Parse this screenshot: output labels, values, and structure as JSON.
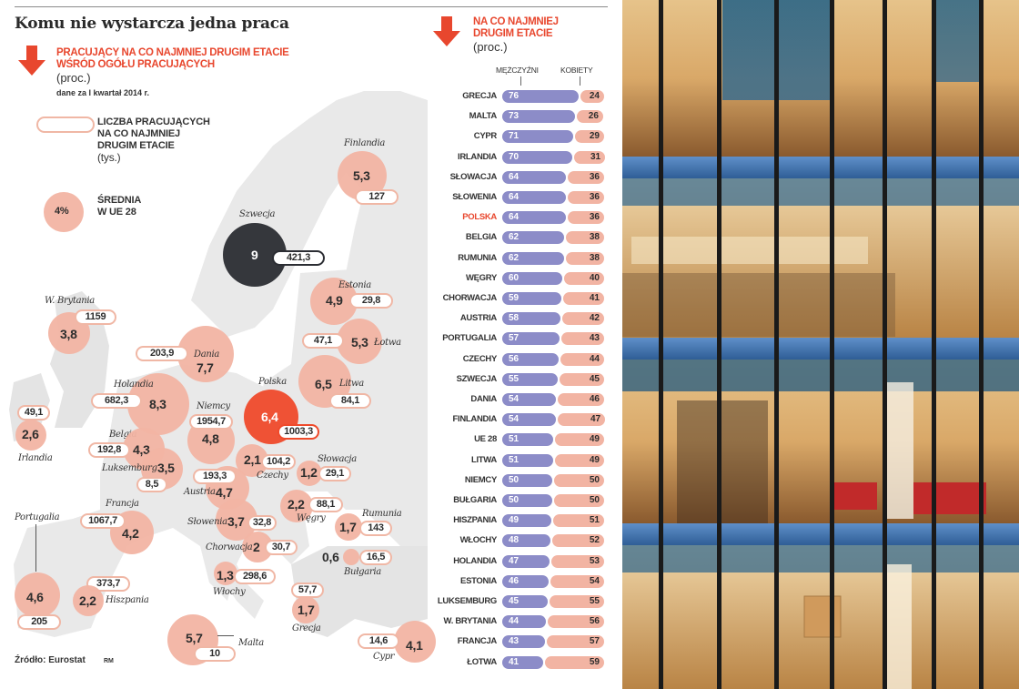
{
  "title": "Komu nie wystarcza jedna praca",
  "map_panel": {
    "subtitle_line1": "PRACUJĄCY NA CO NAJMNIEJ DRUGIM ETACIE",
    "subtitle_line2": "WŚRÓD OGÓŁU PRACUJĄCYCH",
    "unit": "(proc.)",
    "date_note": "dane za I kwartał 2014 r.",
    "legend": {
      "pill_line1": "LICZBA PRACUJĄCYCH",
      "pill_line2": "NA CO NAJMNIEJ",
      "pill_line3": "DRUGIM ETACIE",
      "pill_unit": "(tys.)",
      "avg_value": "4%",
      "avg_line1": "ŚREDNIA",
      "avg_line2": "W UE 28"
    },
    "source": "Źródło: Eurostat",
    "author": "RM"
  },
  "bar_panel": {
    "title_line1": "NA CO NAJMNIEJ",
    "title_line2": "DRUGIM ETACIE",
    "unit": "(proc.)",
    "col_men": "MĘŻCZYŹNI",
    "col_women": "KOBIETY",
    "highlight_color": "#e8472e",
    "men_color": "#8c8cc8",
    "women_color": "#f2b4a3"
  },
  "chart_data": [
    {
      "type": "bubble-map",
      "title": "Pracujący na co najmniej drugim etacie wśród ogółu pracujących (proc.)",
      "subtitle": "dane za I kwartał 2014 r.",
      "value_label": "% pracujących na co najmniej drugim etacie",
      "secondary_label": "Liczba pracujących na co najmniej drugim etacie (tys.)",
      "eu28_average_pct": 4,
      "points": [
        {
          "country": "Szwecja",
          "pct": 9,
          "thousands": 421.3
        },
        {
          "country": "Holandia",
          "pct": 8.3,
          "thousands": 682.3
        },
        {
          "country": "Dania",
          "pct": 7.7,
          "thousands": 203.9
        },
        {
          "country": "Litwa",
          "pct": 6.5,
          "thousands": 84.1
        },
        {
          "country": "Polska",
          "pct": 6.4,
          "thousands": 1003.3
        },
        {
          "country": "Malta",
          "pct": 5.7,
          "thousands": 10
        },
        {
          "country": "Finlandia",
          "pct": 5.3,
          "thousands": 127
        },
        {
          "country": "Łotwa",
          "pct": 5.3,
          "thousands": 47.1
        },
        {
          "country": "Estonia",
          "pct": 4.9,
          "thousands": 29.8
        },
        {
          "country": "Niemcy",
          "pct": 4.8,
          "thousands": 1954.7
        },
        {
          "country": "Austria",
          "pct": 4.7,
          "thousands": 193.3
        },
        {
          "country": "Portugalia",
          "pct": 4.6,
          "thousands": 205
        },
        {
          "country": "Belgia",
          "pct": 4.3,
          "thousands": 192.8
        },
        {
          "country": "Francja",
          "pct": 4.2,
          "thousands": 1067.7
        },
        {
          "country": "Cypr",
          "pct": 4.1,
          "thousands": 14.6
        },
        {
          "country": "W. Brytania",
          "pct": 3.8,
          "thousands": 1159
        },
        {
          "country": "Słowenia",
          "pct": 3.7,
          "thousands": 32.8
        },
        {
          "country": "Luksemburg",
          "pct": 3.5,
          "thousands": 8.5
        },
        {
          "country": "Irlandia",
          "pct": 2.6,
          "thousands": 49.1
        },
        {
          "country": "Hiszpania",
          "pct": 2.2,
          "thousands": 373.7
        },
        {
          "country": "Węgry",
          "pct": 2.2,
          "thousands": 88.1
        },
        {
          "country": "Czechy",
          "pct": 2.1,
          "thousands": 104.2
        },
        {
          "country": "Chorwacja",
          "pct": 2,
          "thousands": 30.7
        },
        {
          "country": "Rumunia",
          "pct": 1.7,
          "thousands": 143
        },
        {
          "country": "Grecja",
          "pct": 1.7,
          "thousands": 57.7
        },
        {
          "country": "Włochy",
          "pct": 1.3,
          "thousands": 298.6
        },
        {
          "country": "Słowacja",
          "pct": 1.2,
          "thousands": 29.1
        },
        {
          "country": "Bułgaria",
          "pct": 0.6,
          "thousands": 16.5
        }
      ],
      "source": "Eurostat"
    },
    {
      "type": "bar",
      "stacked": true,
      "orientation": "horizontal",
      "title": "Na co najmniej drugim etacie (proc.)",
      "categories": [
        "GRECJA",
        "MALTA",
        "CYPR",
        "IRLANDIA",
        "SŁOWACJA",
        "SŁOWENIA",
        "POLSKA",
        "BELGIA",
        "RUMUNIA",
        "WĘGRY",
        "CHORWACJA",
        "AUSTRIA",
        "PORTUGALIA",
        "CZECHY",
        "SZWECJA",
        "DANIA",
        "FINLANDIA",
        "UE 28",
        "LITWA",
        "NIEMCY",
        "BUŁGARIA",
        "HISZPANIA",
        "WŁOCHY",
        "HOLANDIA",
        "ESTONIA",
        "LUKSEMBURG",
        "W. BRYTANIA",
        "FRANCJA",
        "ŁOTWA"
      ],
      "series": [
        {
          "name": "MĘŻCZYŹNI",
          "values": [
            76,
            73,
            71,
            70,
            64,
            64,
            64,
            62,
            62,
            60,
            59,
            58,
            57,
            56,
            55,
            54,
            54,
            51,
            51,
            50,
            50,
            49,
            48,
            47,
            46,
            45,
            44,
            43,
            41
          ]
        },
        {
          "name": "KOBIETY",
          "values": [
            24,
            26,
            29,
            31,
            36,
            36,
            36,
            38,
            38,
            40,
            41,
            42,
            43,
            44,
            45,
            46,
            47,
            49,
            49,
            50,
            50,
            51,
            52,
            53,
            54,
            55,
            56,
            57,
            59
          ]
        }
      ],
      "highlight": "POLSKA",
      "xlim": [
        0,
        100
      ]
    }
  ]
}
